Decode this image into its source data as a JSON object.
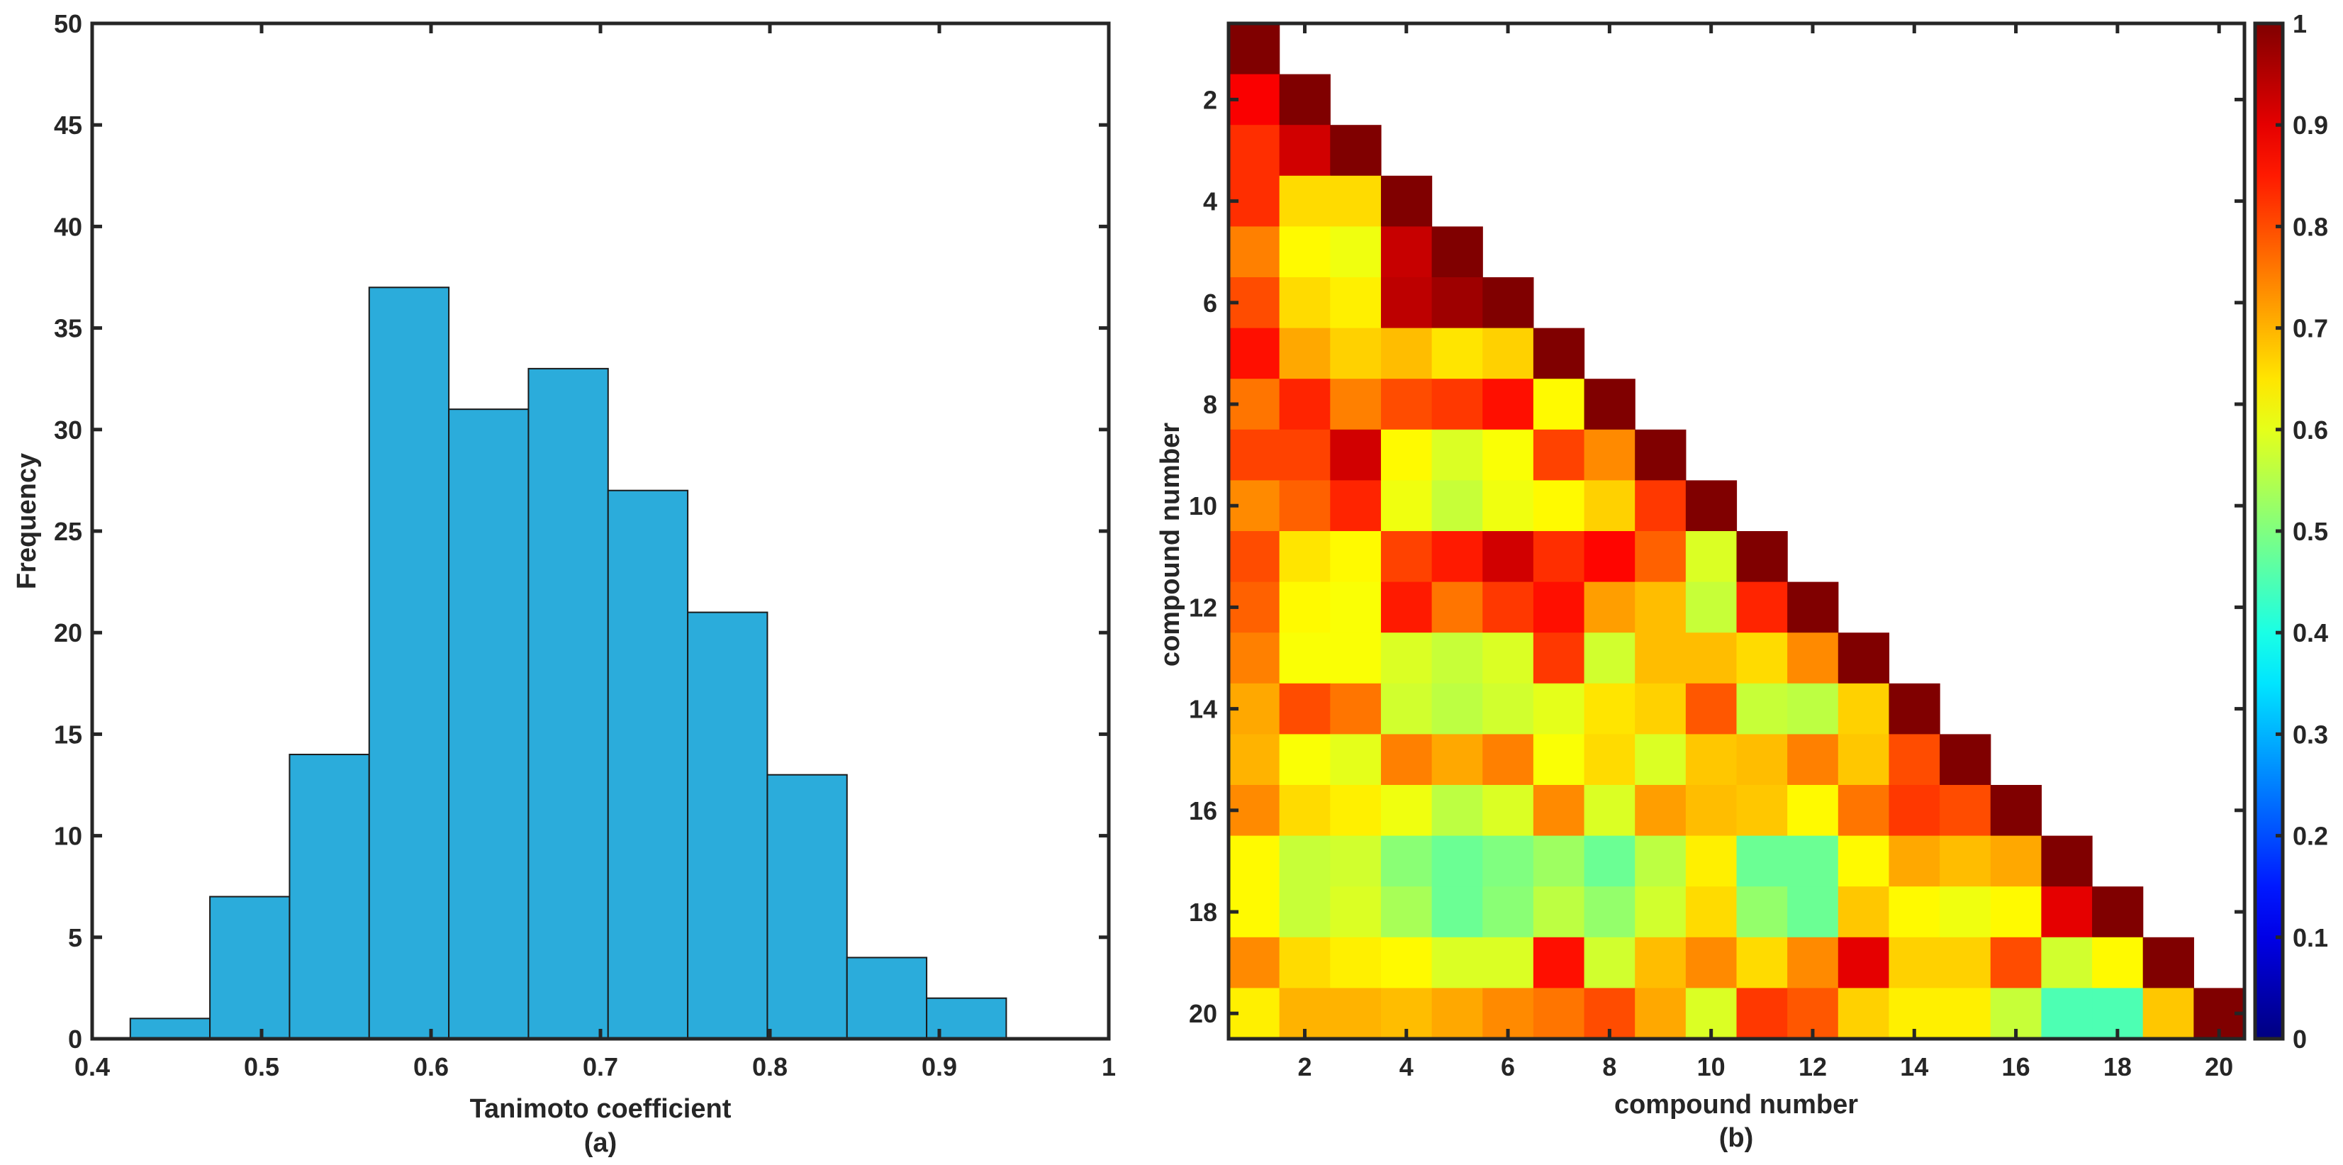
{
  "chart_data": [
    {
      "type": "bar",
      "subtype": "histogram",
      "panel_label": "(a)",
      "xlabel": "Tanimoto coefficient",
      "ylabel": "Frequency",
      "xlim": [
        0.4,
        1
      ],
      "ylim": [
        0,
        50
      ],
      "xticks": [
        "0.4",
        "0.5",
        "0.6",
        "0.7",
        "0.8",
        "0.9",
        "1"
      ],
      "yticks": [
        "0",
        "5",
        "10",
        "15",
        "20",
        "25",
        "30",
        "35",
        "40",
        "45",
        "50"
      ],
      "bin_edges": [
        0.4225,
        0.4695,
        0.5165,
        0.5635,
        0.6105,
        0.6575,
        0.7045,
        0.7515,
        0.7985,
        0.8455,
        0.8925,
        0.9395
      ],
      "values": [
        1,
        7,
        14,
        37,
        31,
        33,
        27,
        21,
        13,
        4,
        2
      ],
      "bar_color": "#2BACDB"
    },
    {
      "type": "heatmap",
      "panel_label": "(b)",
      "xlabel": "compound number",
      "ylabel": "compound number",
      "xticks": [
        "2",
        "4",
        "6",
        "8",
        "10",
        "12",
        "14",
        "16",
        "18",
        "20"
      ],
      "yticks": [
        "2",
        "4",
        "6",
        "8",
        "10",
        "12",
        "14",
        "16",
        "18",
        "20"
      ],
      "colorbar_ticks": [
        "0",
        "0.1",
        "0.2",
        "0.3",
        "0.4",
        "0.5",
        "0.6",
        "0.7",
        "0.8",
        "0.9",
        "1"
      ],
      "colormap": "jet",
      "clim": [
        0,
        1
      ],
      "rows": [
        [
          1.0
        ],
        [
          0.88,
          1.0
        ],
        [
          0.83,
          0.92,
          1.0
        ],
        [
          0.83,
          0.66,
          0.66,
          1.0
        ],
        [
          0.75,
          0.63,
          0.61,
          0.93,
          1.0
        ],
        [
          0.8,
          0.66,
          0.64,
          0.94,
          0.97,
          1.0
        ],
        [
          0.86,
          0.71,
          0.67,
          0.69,
          0.65,
          0.67,
          1.0
        ],
        [
          0.76,
          0.84,
          0.75,
          0.8,
          0.82,
          0.86,
          0.63,
          1.0
        ],
        [
          0.81,
          0.81,
          0.92,
          0.63,
          0.59,
          0.62,
          0.81,
          0.74,
          1.0
        ],
        [
          0.74,
          0.78,
          0.84,
          0.61,
          0.57,
          0.61,
          0.63,
          0.67,
          0.82,
          1.0
        ],
        [
          0.8,
          0.65,
          0.63,
          0.81,
          0.85,
          0.92,
          0.83,
          0.87,
          0.78,
          0.59,
          1.0
        ],
        [
          0.78,
          0.63,
          0.62,
          0.85,
          0.76,
          0.82,
          0.86,
          0.72,
          0.69,
          0.57,
          0.84,
          1.0
        ],
        [
          0.75,
          0.62,
          0.62,
          0.59,
          0.57,
          0.59,
          0.82,
          0.58,
          0.69,
          0.69,
          0.66,
          0.74,
          1.0
        ],
        [
          0.71,
          0.8,
          0.76,
          0.58,
          0.56,
          0.58,
          0.6,
          0.65,
          0.67,
          0.79,
          0.57,
          0.56,
          0.67,
          1.0
        ],
        [
          0.7,
          0.62,
          0.6,
          0.75,
          0.71,
          0.75,
          0.62,
          0.66,
          0.59,
          0.68,
          0.69,
          0.75,
          0.68,
          0.8,
          1.0
        ],
        [
          0.74,
          0.66,
          0.64,
          0.61,
          0.56,
          0.59,
          0.74,
          0.59,
          0.72,
          0.69,
          0.68,
          0.63,
          0.76,
          0.82,
          0.8,
          1.0
        ],
        [
          0.63,
          0.57,
          0.58,
          0.51,
          0.48,
          0.5,
          0.53,
          0.48,
          0.56,
          0.64,
          0.48,
          0.48,
          0.63,
          0.71,
          0.69,
          0.71,
          1.0
        ],
        [
          0.63,
          0.57,
          0.59,
          0.54,
          0.48,
          0.51,
          0.56,
          0.52,
          0.58,
          0.66,
          0.52,
          0.48,
          0.68,
          0.63,
          0.61,
          0.63,
          0.9,
          1.0
        ],
        [
          0.74,
          0.66,
          0.64,
          0.63,
          0.59,
          0.59,
          0.86,
          0.58,
          0.69,
          0.74,
          0.66,
          0.74,
          0.9,
          0.67,
          0.67,
          0.8,
          0.58,
          0.63,
          1.0
        ],
        [
          0.64,
          0.7,
          0.7,
          0.69,
          0.71,
          0.74,
          0.76,
          0.8,
          0.71,
          0.59,
          0.82,
          0.79,
          0.67,
          0.64,
          0.64,
          0.57,
          0.45,
          0.45,
          0.68,
          1.0
        ]
      ]
    }
  ]
}
